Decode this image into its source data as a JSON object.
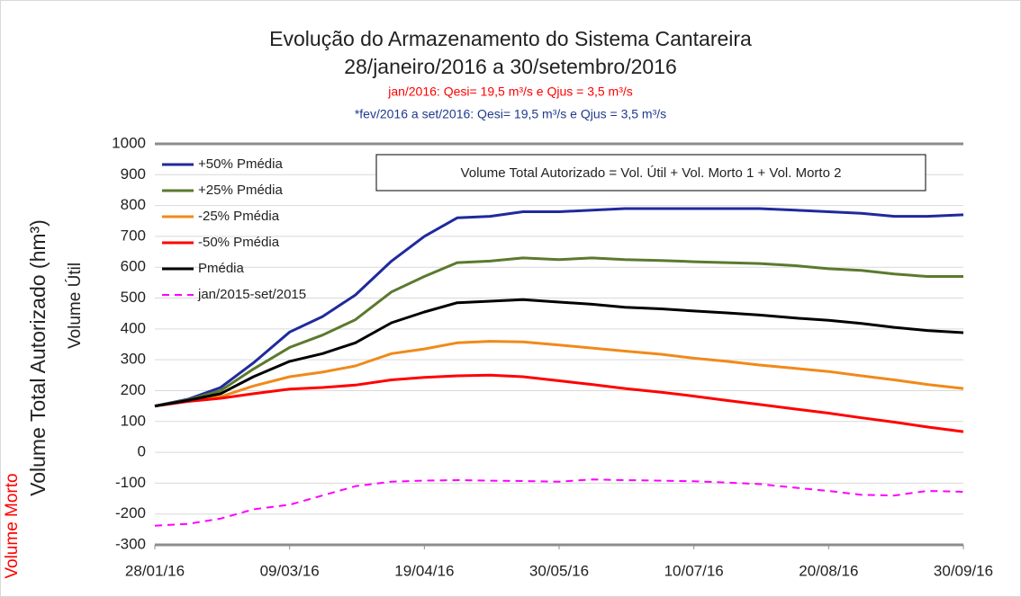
{
  "chart_data": {
    "type": "line",
    "title": "Evolução do Armazenamento do Sistema Cantareira",
    "subtitle": "28/janeiro/2016 a 30/setembro/2016",
    "annotations": [
      "jan/2016: Qesi= 19,5 m³/s e Qjus = 3,5 m³/s",
      "*fev/2016 a set/2016: Qesi= 19,5 m³/s e Qjus = 3,5 m³/s"
    ],
    "note_box": "Volume Total Autorizado = Vol. Útil + Vol. Morto 1 + Vol. Morto 2",
    "y_label": "Volume Total Autorizado (hm³)",
    "y_label_upper": "Volume Útil",
    "y_label_lower": "Volume Morto",
    "x": [
      "28/01/16",
      "07/02/16",
      "17/02/16",
      "27/02/16",
      "09/03/16",
      "19/03/16",
      "29/03/16",
      "09/04/16",
      "19/04/16",
      "29/04/16",
      "09/05/16",
      "19/05/16",
      "30/05/16",
      "09/06/16",
      "19/06/16",
      "30/06/16",
      "10/07/16",
      "20/07/16",
      "30/07/16",
      "10/08/16",
      "20/08/16",
      "30/08/16",
      "09/09/16",
      "19/09/16",
      "30/09/16"
    ],
    "xlim": [
      "28/01/16",
      "30/09/16"
    ],
    "xticks": [
      "28/01/16",
      "09/03/16",
      "19/04/16",
      "30/05/16",
      "10/07/16",
      "20/08/16",
      "30/09/16"
    ],
    "ylim": [
      -300,
      1000
    ],
    "yticks": [
      -300,
      -200,
      -100,
      0,
      100,
      200,
      300,
      400,
      500,
      600,
      700,
      800,
      900,
      1000
    ],
    "grid": true,
    "legend": "upper left",
    "series": [
      {
        "name": "+50% Pmédia",
        "color": "#1f2a9c",
        "values": [
          150,
          172,
          210,
          290,
          390,
          440,
          510,
          620,
          700,
          760,
          765,
          780,
          780,
          785,
          790,
          790,
          790,
          790,
          790,
          785,
          780,
          775,
          765,
          765,
          770
        ]
      },
      {
        "name": "+25% Pmédia",
        "color": "#5a7a2e",
        "values": [
          150,
          170,
          200,
          270,
          340,
          380,
          430,
          520,
          570,
          615,
          620,
          630,
          625,
          630,
          625,
          622,
          618,
          615,
          612,
          605,
          595,
          590,
          578,
          570,
          570
        ]
      },
      {
        "name": "-25% Pmédia",
        "color": "#f08a1a",
        "values": [
          150,
          167,
          180,
          215,
          245,
          260,
          280,
          320,
          335,
          355,
          360,
          358,
          348,
          338,
          328,
          318,
          305,
          295,
          283,
          272,
          262,
          248,
          235,
          220,
          207
        ]
      },
      {
        "name": "-50% Pmédia",
        "color": "#ff0000",
        "values": [
          150,
          165,
          175,
          190,
          205,
          210,
          218,
          235,
          243,
          248,
          250,
          245,
          232,
          220,
          207,
          195,
          182,
          168,
          155,
          140,
          127,
          112,
          98,
          82,
          67
        ]
      },
      {
        "name": "Pmédia",
        "color": "#000000",
        "values": [
          150,
          168,
          190,
          245,
          295,
          320,
          355,
          420,
          455,
          485,
          490,
          495,
          487,
          480,
          470,
          465,
          458,
          452,
          445,
          435,
          428,
          418,
          405,
          395,
          388
        ]
      },
      {
        "name": "jan/2015-set/2015",
        "color": "#ff00ff",
        "dash": true,
        "values": [
          -238,
          -232,
          -215,
          -185,
          -170,
          -140,
          -110,
          -95,
          -92,
          -90,
          -92,
          -93,
          -95,
          -88,
          -90,
          -92,
          -94,
          -98,
          -103,
          -115,
          -125,
          -138,
          -140,
          -125,
          -128
        ]
      }
    ]
  }
}
